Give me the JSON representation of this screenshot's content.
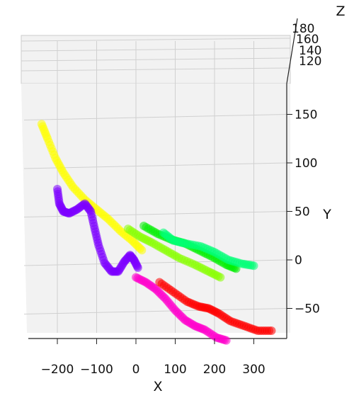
{
  "chart_data": {
    "type": "scatter",
    "projection": "3d",
    "title": "",
    "xlabel": "X",
    "ylabel": "Y",
    "zlabel": "Z",
    "xlim": [
      -270,
      380
    ],
    "ylim": [
      -80,
      170
    ],
    "zlim": [
      115,
      180
    ],
    "x_ticks": [
      "−200",
      "−100",
      "0",
      "100",
      "200",
      "300"
    ],
    "y_ticks": [
      "150",
      "100",
      "50",
      "0",
      "−50"
    ],
    "z_ticks": [
      "180",
      "160",
      "140",
      "120"
    ],
    "grid": true,
    "series": [
      {
        "color": "#ffff00",
        "points": [
          [
            -240,
            140
          ],
          [
            -225,
            125
          ],
          [
            -205,
            105
          ],
          [
            -185,
            90
          ],
          [
            -160,
            75
          ],
          [
            -130,
            62
          ],
          [
            -100,
            52
          ],
          [
            -70,
            42
          ],
          [
            -40,
            30
          ],
          [
            -10,
            20
          ],
          [
            15,
            10
          ]
        ]
      },
      {
        "color": "#7b00ff",
        "points": [
          [
            -200,
            73
          ],
          [
            -195,
            58
          ],
          [
            -185,
            50
          ],
          [
            -170,
            48
          ],
          [
            -150,
            52
          ],
          [
            -130,
            58
          ],
          [
            -115,
            50
          ],
          [
            -105,
            32
          ],
          [
            -95,
            15
          ],
          [
            -80,
            -3
          ],
          [
            -62,
            -12
          ],
          [
            -45,
            -12
          ],
          [
            -30,
            -2
          ],
          [
            -15,
            5
          ],
          [
            -5,
            0
          ],
          [
            5,
            -8
          ]
        ]
      },
      {
        "color": "#ff00cc",
        "points": [
          [
            0,
            -18
          ],
          [
            25,
            -23
          ],
          [
            50,
            -30
          ],
          [
            75,
            -40
          ],
          [
            100,
            -52
          ],
          [
            125,
            -62
          ],
          [
            150,
            -68
          ],
          [
            175,
            -72
          ],
          [
            205,
            -80
          ],
          [
            230,
            -83
          ]
        ]
      },
      {
        "color": "#ff0000",
        "points": [
          [
            60,
            -23
          ],
          [
            95,
            -33
          ],
          [
            130,
            -43
          ],
          [
            160,
            -48
          ],
          [
            185,
            -50
          ],
          [
            210,
            -55
          ],
          [
            240,
            -63
          ],
          [
            275,
            -68
          ],
          [
            310,
            -73
          ],
          [
            345,
            -73
          ]
        ]
      },
      {
        "color": "#88ff00",
        "points": [
          [
            -20,
            32
          ],
          [
            10,
            24
          ],
          [
            40,
            18
          ],
          [
            75,
            10
          ],
          [
            110,
            2
          ],
          [
            150,
            -5
          ],
          [
            185,
            -12
          ],
          [
            215,
            -18
          ]
        ]
      },
      {
        "color": "#00ee00",
        "points": [
          [
            20,
            35
          ],
          [
            55,
            27
          ],
          [
            90,
            21
          ],
          [
            125,
            17
          ],
          [
            160,
            10
          ],
          [
            195,
            3
          ],
          [
            230,
            -5
          ],
          [
            255,
            -9
          ]
        ]
      },
      {
        "color": "#00ff77",
        "points": [
          [
            70,
            28
          ],
          [
            95,
            20
          ],
          [
            125,
            17
          ],
          [
            165,
            14
          ],
          [
            200,
            8
          ],
          [
            235,
            0
          ],
          [
            270,
            -4
          ],
          [
            300,
            -6
          ]
        ]
      }
    ]
  }
}
